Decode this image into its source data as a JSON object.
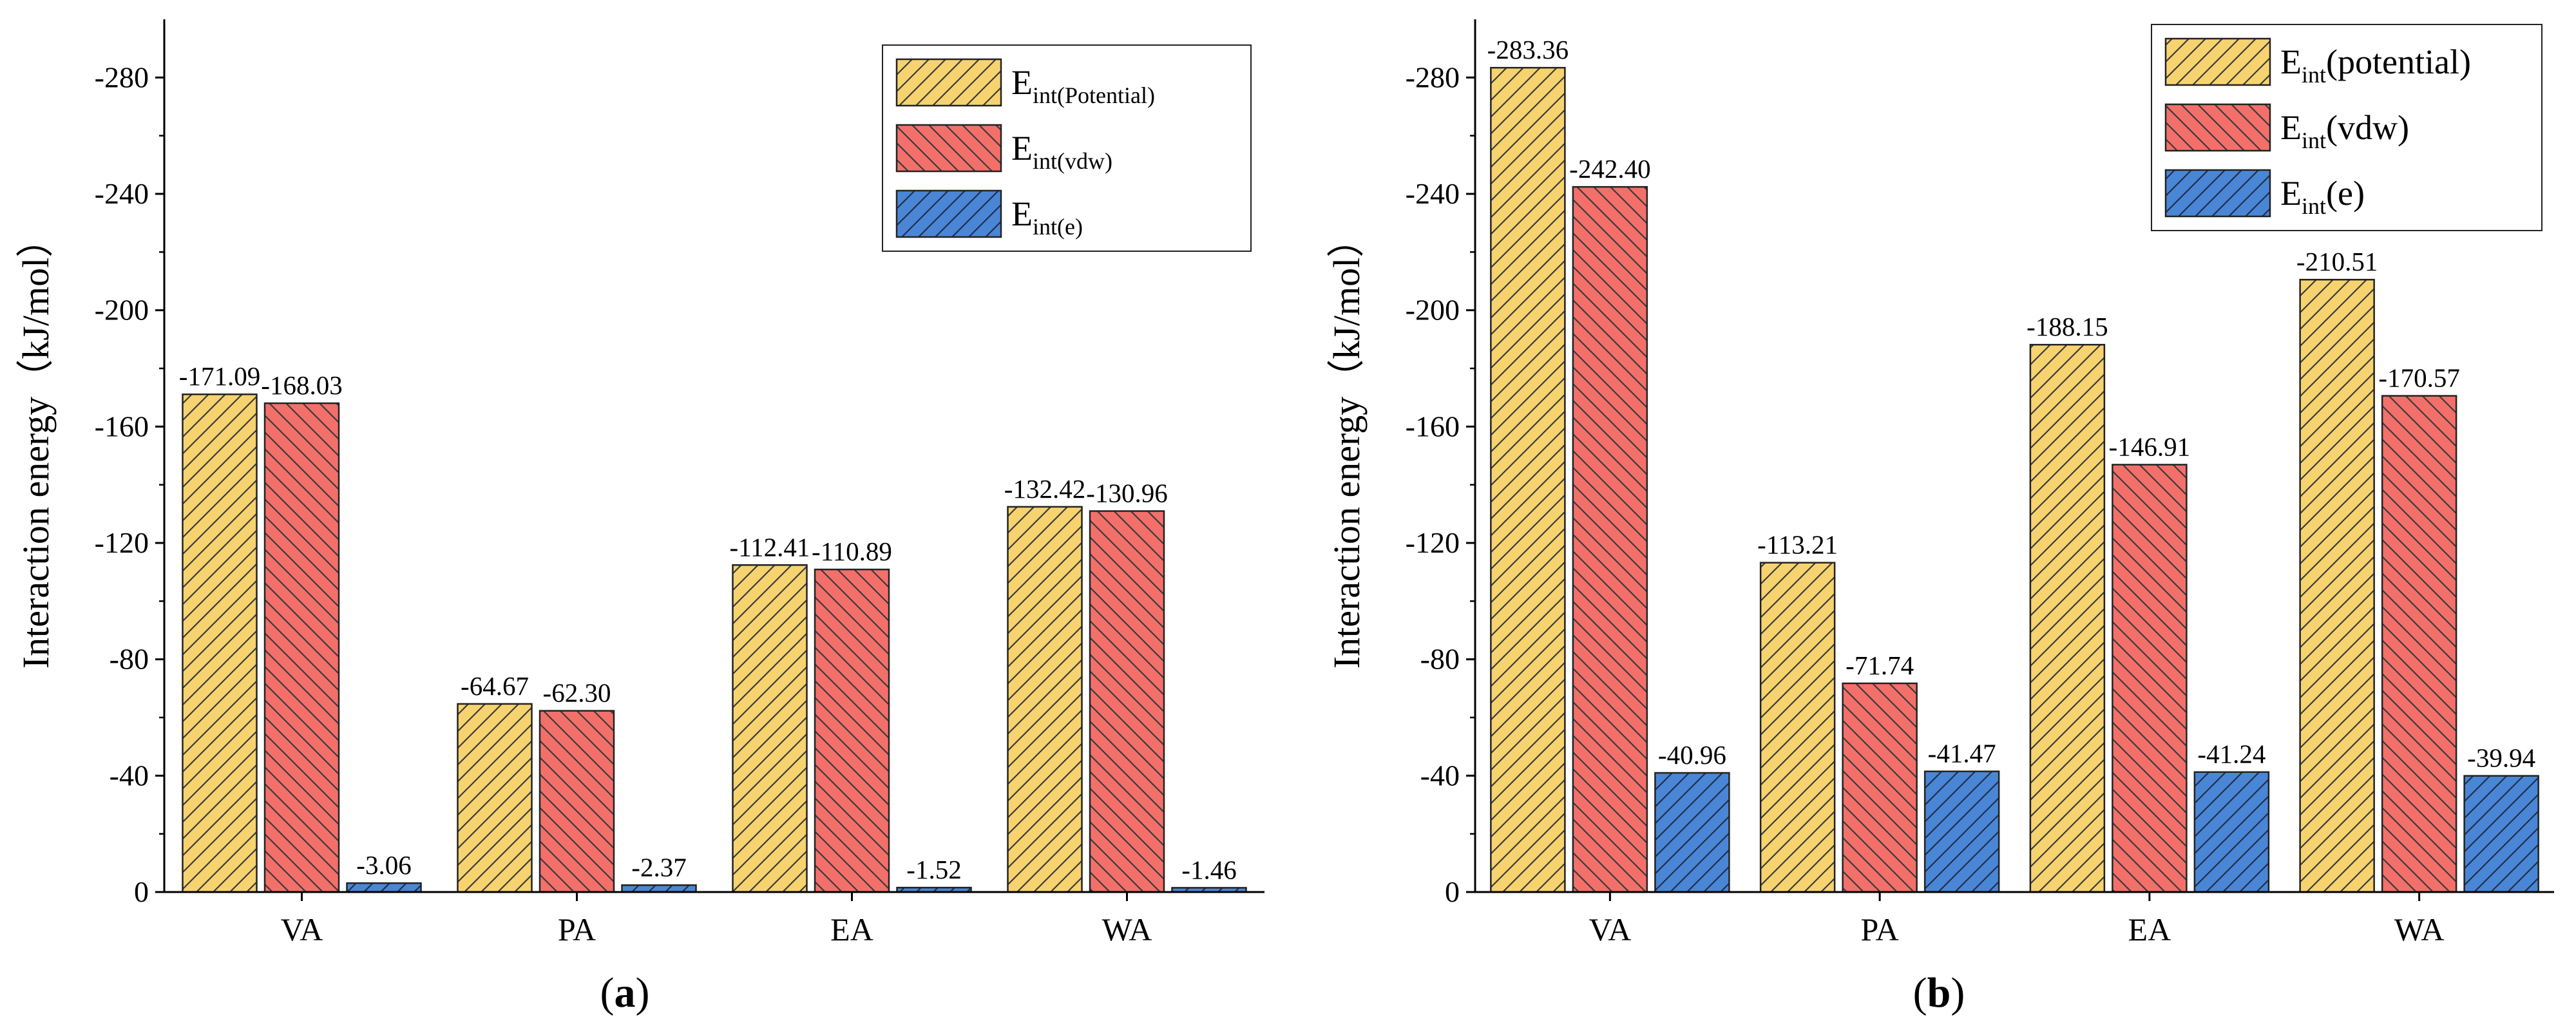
{
  "colors": {
    "potential": "#F7D36F",
    "vdw": "#F3706A",
    "e": "#4A86D6",
    "axis": "#000000"
  },
  "chart_data": [
    {
      "type": "bar",
      "panel_label": "a",
      "ylabel": "Interaction energy（kJ/mol）",
      "xlabel": "",
      "ylim": [
        0,
        -300
      ],
      "yticks": [
        0,
        -40,
        -80,
        -120,
        -160,
        -200,
        -240,
        -280
      ],
      "ytick_labels": [
        "0",
        "-40",
        "-80",
        "-120",
        "-160",
        "-200",
        "-240",
        "-280"
      ],
      "categories": [
        "VA",
        "PA",
        "EA",
        "WA"
      ],
      "legend_position": "top-right",
      "series": [
        {
          "key": "potential",
          "legend_main": "E",
          "legend_sub": "int(Potential)",
          "values": [
            -171.09,
            -64.67,
            -112.41,
            -132.42
          ],
          "labels": [
            "-171.09",
            "-64.67",
            "-112.41",
            "-132.42"
          ]
        },
        {
          "key": "vdw",
          "legend_main": "E",
          "legend_sub": "int(vdw)",
          "values": [
            -168.03,
            -62.3,
            -110.89,
            -130.96
          ],
          "labels": [
            "-168.03",
            "-62.30",
            "-110.89",
            "-130.96"
          ]
        },
        {
          "key": "e",
          "legend_main": "E",
          "legend_sub": "int(e)",
          "values": [
            -3.06,
            -2.37,
            -1.52,
            -1.46
          ],
          "labels": [
            "-3.06",
            "-2.37",
            "-1.52",
            "-1.46"
          ]
        }
      ]
    },
    {
      "type": "bar",
      "panel_label": "b",
      "ylabel": "Interaction energy（kJ/mol）",
      "xlabel": "",
      "ylim": [
        0,
        -300
      ],
      "yticks": [
        0,
        -40,
        -80,
        -120,
        -160,
        -200,
        -240,
        -280
      ],
      "ytick_labels": [
        "0",
        "-40",
        "-80",
        "-120",
        "-160",
        "-200",
        "-240",
        "-280"
      ],
      "categories": [
        "VA",
        "PA",
        "EA",
        "WA"
      ],
      "legend_position": "top-right",
      "series": [
        {
          "key": "potential",
          "legend_main": "E",
          "legend_sub": "int",
          "legend_tail": "(potential)",
          "values": [
            -283.36,
            -113.21,
            -188.15,
            -210.51
          ],
          "labels": [
            "-283.36",
            "-113.21",
            "-188.15",
            "-210.51"
          ]
        },
        {
          "key": "vdw",
          "legend_main": "E",
          "legend_sub": "int",
          "legend_tail": "(vdw)",
          "values": [
            -242.4,
            -71.74,
            -146.91,
            -170.57
          ],
          "labels": [
            "-242.40",
            "-71.74",
            "-146.91",
            "-170.57"
          ]
        },
        {
          "key": "e",
          "legend_main": "E",
          "legend_sub": "int",
          "legend_tail": "(e)",
          "values": [
            -40.96,
            -41.47,
            -41.24,
            -39.94
          ],
          "labels": [
            "-40.96",
            "-41.47",
            "-41.24",
            "-39.94"
          ]
        }
      ]
    }
  ]
}
